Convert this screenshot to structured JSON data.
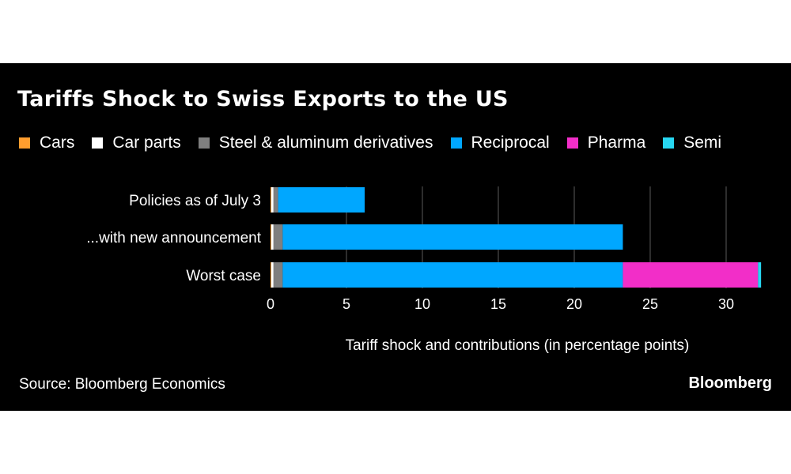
{
  "chart_data": {
    "type": "bar",
    "orientation": "horizontal",
    "stacked": true,
    "title": "Tariffs Shock to Swiss Exports to the US",
    "xlabel": "Tariff shock and contributions (in percentage points)",
    "ylabel": "",
    "categories": [
      "Policies as of July 3",
      "...with new announcement",
      "Worst case"
    ],
    "series": [
      {
        "name": "Cars",
        "color": "#ff9d2e",
        "values": [
          0.05,
          0.05,
          0.05
        ]
      },
      {
        "name": "Car parts",
        "color": "#ffffff",
        "values": [
          0.15,
          0.15,
          0.15
        ]
      },
      {
        "name": "Steel & aluminum derivatives",
        "color": "#7f7f7f",
        "values": [
          0.3,
          0.6,
          0.6
        ]
      },
      {
        "name": "Reciprocal",
        "color": "#00a7ff",
        "values": [
          5.7,
          22.4,
          22.4
        ]
      },
      {
        "name": "Pharma",
        "color": "#f22ec8",
        "values": [
          0,
          0,
          8.9
        ]
      },
      {
        "name": "Semi",
        "color": "#27d7f2",
        "values": [
          0,
          0,
          0.2
        ]
      }
    ],
    "xlim": [
      0,
      32.5
    ],
    "xticks": [
      0,
      5,
      10,
      15,
      20,
      25,
      30
    ],
    "grid": "vertical",
    "legend": "top-left"
  },
  "source": "Source: Bloomberg Economics",
  "brand": "Bloomberg"
}
